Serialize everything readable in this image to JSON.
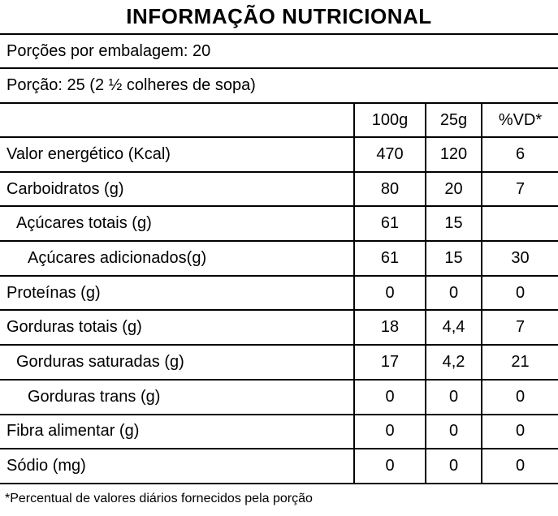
{
  "header": {
    "title": "INFORMAÇÃO NUTRICIONAL",
    "servings_per_package": "Porções por embalagem: 20",
    "serving_size": "Porção: 25 (2 ½ colheres de sopa)"
  },
  "table": {
    "columns": [
      "100g",
      "25g",
      "%VD*"
    ],
    "rows": [
      {
        "label": "Valor energético (Kcal)",
        "per100g": "470",
        "per25g": "120",
        "vd": "6"
      },
      {
        "label": "Carboidratos (g)",
        "per100g": "80",
        "per25g": "20",
        "vd": "7"
      },
      {
        "label": "Açúcares totais (g)",
        "per100g": "61",
        "per25g": "15",
        "vd": ""
      },
      {
        "label": "Açúcares adicionados(g)",
        "per100g": "61",
        "per25g": "15",
        "vd": "30"
      },
      {
        "label": "Proteínas (g)",
        "per100g": "0",
        "per25g": "0",
        "vd": "0"
      },
      {
        "label": "Gorduras totais (g)",
        "per100g": "18",
        "per25g": "4,4",
        "vd": "7"
      },
      {
        "label": "Gorduras saturadas (g)",
        "per100g": "17",
        "per25g": "4,2",
        "vd": "21"
      },
      {
        "label": "Gorduras trans (g)",
        "per100g": "0",
        "per25g": "0",
        "vd": "0"
      },
      {
        "label": "Fibra alimentar (g)",
        "per100g": "0",
        "per25g": "0",
        "vd": "0"
      },
      {
        "label": "Sódio (mg)",
        "per100g": "0",
        "per25g": "0",
        "vd": "0"
      }
    ]
  },
  "footnote": "*Percentual de valores diários fornecidos pela porção",
  "colors": {
    "text": "#000000",
    "background": "#ffffff",
    "border": "#000000"
  }
}
